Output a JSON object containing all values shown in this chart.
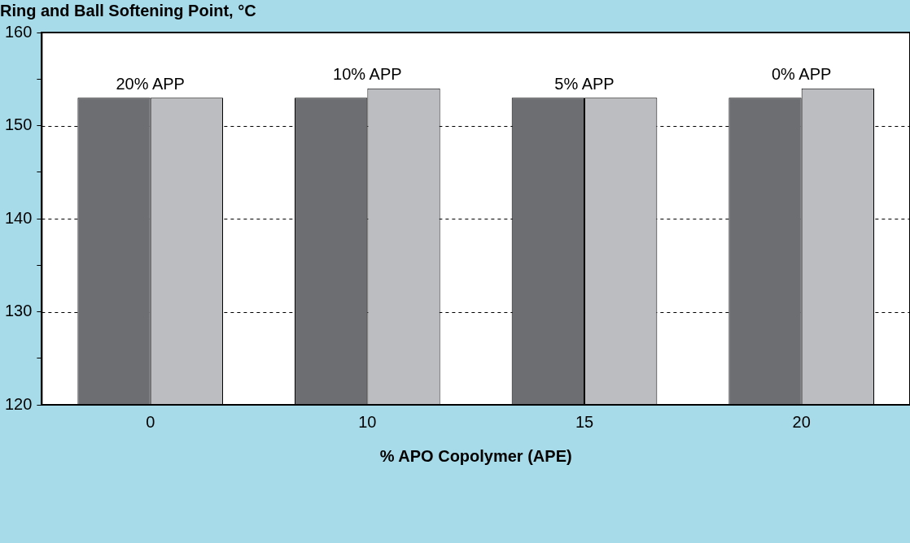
{
  "chart_data": {
    "type": "bar",
    "title": "Ring and Ball Softening Point, °C",
    "xlabel": "% APO Copolymer (APE)",
    "categories": [
      "0",
      "10",
      "15",
      "20"
    ],
    "series": [
      {
        "color": "#6d6e72",
        "values": [
          153,
          153,
          153,
          153
        ]
      },
      {
        "color": "#bcbdc1",
        "values": [
          153,
          154,
          153,
          154
        ]
      }
    ],
    "ylim": [
      120,
      160
    ],
    "yticks": [
      120,
      {
        "value": 125,
        "label": null
      },
      130,
      {
        "value": 135,
        "label": null
      },
      140,
      {
        "value": 145,
        "label": null
      },
      150,
      {
        "value": 155,
        "label": null
      },
      160
    ],
    "grid": "y",
    "line_style": "dashed",
    "annotations": [
      {
        "text": "20% APP",
        "x": "0",
        "y": 153
      },
      {
        "text": "10% APP",
        "x": "10",
        "y": 154
      },
      {
        "text": "5% APP",
        "x": "15",
        "y": 153
      },
      {
        "text": "0% APP",
        "x": "20",
        "y": 154
      }
    ]
  }
}
